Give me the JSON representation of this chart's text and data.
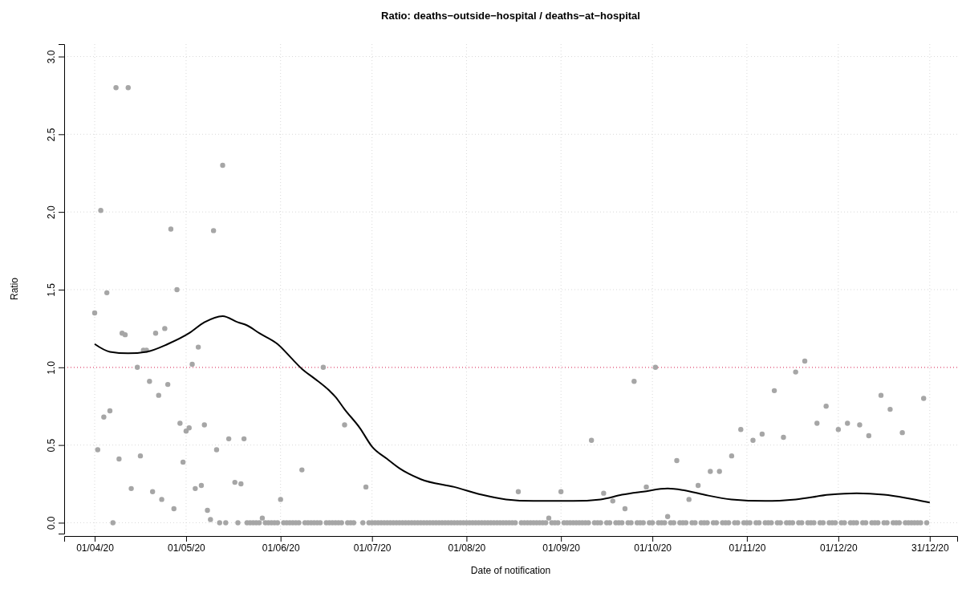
{
  "chart_data": {
    "type": "scatter",
    "title": "Ratio: deaths−outside−hospital / deaths−at−hospital",
    "xlabel": "Date of notification",
    "ylabel": "Ratio",
    "xlim": [
      "2020-03-22",
      "2021-01-09"
    ],
    "ylim": [
      -0.07,
      3.08
    ],
    "xticks": [
      {
        "value": "2020-04-01",
        "label": "01/04/20"
      },
      {
        "value": "2020-05-01",
        "label": "01/05/20"
      },
      {
        "value": "2020-06-01",
        "label": "01/06/20"
      },
      {
        "value": "2020-07-01",
        "label": "01/07/20"
      },
      {
        "value": "2020-08-01",
        "label": "01/08/20"
      },
      {
        "value": "2020-09-01",
        "label": "01/09/20"
      },
      {
        "value": "2020-10-01",
        "label": "01/10/20"
      },
      {
        "value": "2020-11-01",
        "label": "01/11/20"
      },
      {
        "value": "2020-12-01",
        "label": "01/12/20"
      },
      {
        "value": "2020-12-31",
        "label": "31/12/20"
      }
    ],
    "yticks": [
      {
        "value": 0,
        "label": "0.0"
      },
      {
        "value": 0.5,
        "label": "0.5"
      },
      {
        "value": 1,
        "label": "1.0"
      },
      {
        "value": 1.5,
        "label": "1.5"
      },
      {
        "value": 2,
        "label": "2.0"
      },
      {
        "value": 2.5,
        "label": "2.5"
      },
      {
        "value": 3,
        "label": "3.0"
      }
    ],
    "grid": true,
    "ref_lines": [
      {
        "axis": "y",
        "value": 1,
        "color": "#e8537a",
        "line_style": "dotted"
      }
    ],
    "series": [
      {
        "type": "scatter",
        "color": "#a6a6a6",
        "marker": "circle",
        "x": [
          "2020-04-01",
          "2020-04-02",
          "2020-04-03",
          "2020-04-04",
          "2020-04-05",
          "2020-04-06",
          "2020-04-07",
          "2020-04-08",
          "2020-04-09",
          "2020-04-10",
          "2020-04-11",
          "2020-04-12",
          "2020-04-13",
          "2020-04-14",
          "2020-04-15",
          "2020-04-16",
          "2020-04-17",
          "2020-04-18",
          "2020-04-19",
          "2020-04-20",
          "2020-04-21",
          "2020-04-22",
          "2020-04-23",
          "2020-04-24",
          "2020-04-25",
          "2020-04-26",
          "2020-04-27",
          "2020-04-28",
          "2020-04-29",
          "2020-04-30",
          "2020-05-01",
          "2020-05-02",
          "2020-05-03",
          "2020-05-04",
          "2020-05-05",
          "2020-05-06",
          "2020-05-07",
          "2020-05-08",
          "2020-05-09",
          "2020-05-10",
          "2020-05-11",
          "2020-05-12",
          "2020-05-13",
          "2020-05-14",
          "2020-05-15",
          "2020-05-16",
          "2020-05-17",
          "2020-05-18",
          "2020-05-19",
          "2020-05-20",
          "2020-05-21",
          "2020-05-22",
          "2020-05-23",
          "2020-05-24",
          "2020-05-25",
          "2020-05-26",
          "2020-05-27",
          "2020-05-28",
          "2020-05-29",
          "2020-05-30",
          "2020-05-31",
          "2020-06-01",
          "2020-06-02",
          "2020-06-03",
          "2020-06-04",
          "2020-06-05",
          "2020-06-06",
          "2020-06-07",
          "2020-06-08",
          "2020-06-09",
          "2020-06-10",
          "2020-06-11",
          "2020-06-12",
          "2020-06-13",
          "2020-06-14",
          "2020-06-15",
          "2020-06-16",
          "2020-06-17",
          "2020-06-18",
          "2020-06-19",
          "2020-06-20",
          "2020-06-21",
          "2020-06-22",
          "2020-06-23",
          "2020-06-24",
          "2020-06-25",
          "2020-06-26",
          "2020-06-27",
          "2020-06-28",
          "2020-06-29",
          "2020-06-30",
          "2020-07-01",
          "2020-07-02",
          "2020-07-03",
          "2020-07-04",
          "2020-07-05",
          "2020-07-06",
          "2020-07-07",
          "2020-07-08",
          "2020-07-09",
          "2020-07-10",
          "2020-07-11",
          "2020-07-12",
          "2020-07-13",
          "2020-07-14",
          "2020-07-15",
          "2020-07-16",
          "2020-07-17",
          "2020-07-18",
          "2020-07-19",
          "2020-07-20",
          "2020-07-21",
          "2020-07-22",
          "2020-07-23",
          "2020-07-24",
          "2020-07-25",
          "2020-07-26",
          "2020-07-27",
          "2020-07-28",
          "2020-07-29",
          "2020-07-30",
          "2020-07-31",
          "2020-08-01",
          "2020-08-02",
          "2020-08-03",
          "2020-08-04",
          "2020-08-05",
          "2020-08-06",
          "2020-08-07",
          "2020-08-08",
          "2020-08-09",
          "2020-08-10",
          "2020-08-11",
          "2020-08-12",
          "2020-08-13",
          "2020-08-14",
          "2020-08-15",
          "2020-08-16",
          "2020-08-17",
          "2020-08-18",
          "2020-08-19",
          "2020-08-20",
          "2020-08-21",
          "2020-08-22",
          "2020-08-23",
          "2020-08-24",
          "2020-08-25",
          "2020-08-26",
          "2020-08-27",
          "2020-08-28",
          "2020-08-29",
          "2020-08-30",
          "2020-08-31",
          "2020-09-01",
          "2020-09-02",
          "2020-09-03",
          "2020-09-04",
          "2020-09-05",
          "2020-09-06",
          "2020-09-07",
          "2020-09-08",
          "2020-09-09",
          "2020-09-10",
          "2020-09-11",
          "2020-09-12",
          "2020-09-13",
          "2020-09-14",
          "2020-09-15",
          "2020-09-16",
          "2020-09-17",
          "2020-09-18",
          "2020-09-19",
          "2020-09-20",
          "2020-09-21",
          "2020-09-22",
          "2020-09-23",
          "2020-09-24",
          "2020-09-25",
          "2020-09-26",
          "2020-09-27",
          "2020-09-28",
          "2020-09-29",
          "2020-09-30",
          "2020-10-01",
          "2020-10-02",
          "2020-10-03",
          "2020-10-04",
          "2020-10-05",
          "2020-10-06",
          "2020-10-07",
          "2020-10-08",
          "2020-10-09",
          "2020-10-10",
          "2020-10-11",
          "2020-10-12",
          "2020-10-13",
          "2020-10-14",
          "2020-10-15",
          "2020-10-16",
          "2020-10-17",
          "2020-10-18",
          "2020-10-19",
          "2020-10-20",
          "2020-10-21",
          "2020-10-22",
          "2020-10-23",
          "2020-10-24",
          "2020-10-25",
          "2020-10-26",
          "2020-10-27",
          "2020-10-28",
          "2020-10-29",
          "2020-10-30",
          "2020-10-31",
          "2020-11-01",
          "2020-11-02",
          "2020-11-03",
          "2020-11-04",
          "2020-11-05",
          "2020-11-06",
          "2020-11-07",
          "2020-11-08",
          "2020-11-09",
          "2020-11-10",
          "2020-11-11",
          "2020-11-12",
          "2020-11-13",
          "2020-11-14",
          "2020-11-15",
          "2020-11-16",
          "2020-11-17",
          "2020-11-18",
          "2020-11-19",
          "2020-11-20",
          "2020-11-21",
          "2020-11-22",
          "2020-11-23",
          "2020-11-24",
          "2020-11-25",
          "2020-11-26",
          "2020-11-27",
          "2020-11-28",
          "2020-11-29",
          "2020-11-30",
          "2020-12-01",
          "2020-12-02",
          "2020-12-03",
          "2020-12-04",
          "2020-12-05",
          "2020-12-06",
          "2020-12-07",
          "2020-12-08",
          "2020-12-09",
          "2020-12-10",
          "2020-12-11",
          "2020-12-12",
          "2020-12-13",
          "2020-12-14",
          "2020-12-15",
          "2020-12-16",
          "2020-12-17",
          "2020-12-18",
          "2020-12-19",
          "2020-12-20",
          "2020-12-21",
          "2020-12-22",
          "2020-12-23",
          "2020-12-24",
          "2020-12-25",
          "2020-12-26",
          "2020-12-27",
          "2020-12-28",
          "2020-12-29",
          "2020-12-30"
        ],
        "values": [
          1.35,
          0.47,
          2.01,
          0.68,
          1.48,
          0.72,
          0,
          2.8,
          0.41,
          1.22,
          1.21,
          2.8,
          0.22,
          null,
          1.0,
          0.43,
          1.11,
          1.11,
          0.91,
          0.2,
          1.22,
          0.82,
          0.15,
          1.25,
          0.89,
          1.89,
          0.09,
          1.5,
          0.64,
          0.39,
          0.59,
          0.61,
          1.02,
          0.22,
          1.13,
          0.24,
          0.63,
          0.08,
          0.02,
          1.88,
          0.47,
          0,
          2.3,
          0,
          0.54,
          null,
          0.26,
          0,
          0.25,
          0.54,
          0,
          0,
          0,
          0,
          0,
          0.03,
          0,
          0,
          0,
          0,
          0,
          0.15,
          0,
          0,
          0,
          0,
          0,
          0,
          0.34,
          0,
          0,
          0,
          0,
          0,
          0,
          1.0,
          0,
          0,
          0,
          0,
          0,
          0,
          0.63,
          0,
          0,
          0,
          null,
          null,
          0,
          0.23,
          0,
          0,
          0,
          0,
          0,
          0,
          0,
          0,
          0,
          0,
          0,
          0,
          0,
          0,
          0,
          0,
          0,
          0,
          0,
          0,
          0,
          0,
          0,
          0,
          0,
          0,
          0,
          0,
          0,
          0,
          0,
          0,
          0,
          0,
          0,
          0,
          0,
          0,
          0,
          0,
          0,
          0,
          0,
          0,
          0,
          0,
          0,
          0,
          0,
          0.2,
          0,
          0,
          0,
          0,
          0,
          0,
          0,
          0,
          0,
          0.03,
          0,
          0,
          0,
          0.2,
          0,
          0,
          0,
          0,
          0,
          0,
          0,
          0,
          0,
          0.53,
          0,
          0,
          0,
          0.19,
          0,
          0,
          0.14,
          0,
          0,
          0,
          0.09,
          0,
          0,
          0.91,
          0,
          0,
          0,
          0.23,
          0,
          0,
          1.0,
          0,
          0,
          0,
          0.04,
          0,
          0,
          0.4,
          0,
          0,
          0,
          0.15,
          0,
          0,
          0.24,
          0,
          0,
          0,
          0.33,
          0,
          0,
          0.33,
          0,
          0,
          0,
          0.43,
          0,
          0,
          0.6,
          0,
          0,
          0,
          0.53,
          0,
          0,
          0.57,
          0,
          0,
          0,
          0.85,
          0,
          0,
          0.55,
          0,
          0,
          0,
          0.97,
          0,
          0,
          1.04,
          0,
          0,
          0,
          0.64,
          0,
          0,
          0.75,
          0,
          0,
          0,
          0.6,
          0,
          0,
          0.64,
          0,
          0,
          0,
          0.63,
          0,
          0,
          0.56,
          0,
          0,
          0,
          0.82,
          0,
          0,
          0.73,
          0,
          0,
          0,
          0.58,
          0,
          0,
          0,
          0,
          0,
          0,
          0.8,
          0
        ]
      },
      {
        "type": "line",
        "color": "#000000",
        "x": [
          "2020-04-01",
          "2020-04-06",
          "2020-04-12",
          "2020-04-18",
          "2020-04-25",
          "2020-05-02",
          "2020-05-07",
          "2020-05-13",
          "2020-05-18",
          "2020-05-21",
          "2020-05-25",
          "2020-05-31",
          "2020-06-05",
          "2020-06-08",
          "2020-06-12",
          "2020-06-17",
          "2020-06-19",
          "2020-06-22",
          "2020-06-27",
          "2020-07-01",
          "2020-07-06",
          "2020-07-10",
          "2020-07-17",
          "2020-07-28",
          "2020-08-06",
          "2020-08-14",
          "2020-08-23",
          "2020-08-28",
          "2020-09-05",
          "2020-09-14",
          "2020-09-21",
          "2020-09-28",
          "2020-10-06",
          "2020-10-11",
          "2020-10-18",
          "2020-10-27",
          "2020-11-07",
          "2020-11-17",
          "2020-11-28",
          "2020-12-07",
          "2020-12-16",
          "2020-12-23",
          "2020-12-31"
        ],
        "values": [
          1.15,
          1.1,
          1.09,
          1.1,
          1.15,
          1.22,
          1.29,
          1.33,
          1.29,
          1.27,
          1.22,
          1.15,
          1.05,
          0.99,
          0.93,
          0.85,
          0.81,
          0.73,
          0.61,
          0.49,
          0.41,
          0.35,
          0.28,
          0.23,
          0.18,
          0.15,
          0.14,
          0.14,
          0.14,
          0.15,
          0.18,
          0.2,
          0.22,
          0.21,
          0.18,
          0.15,
          0.14,
          0.15,
          0.18,
          0.19,
          0.18,
          0.16,
          0.13
        ]
      }
    ]
  }
}
